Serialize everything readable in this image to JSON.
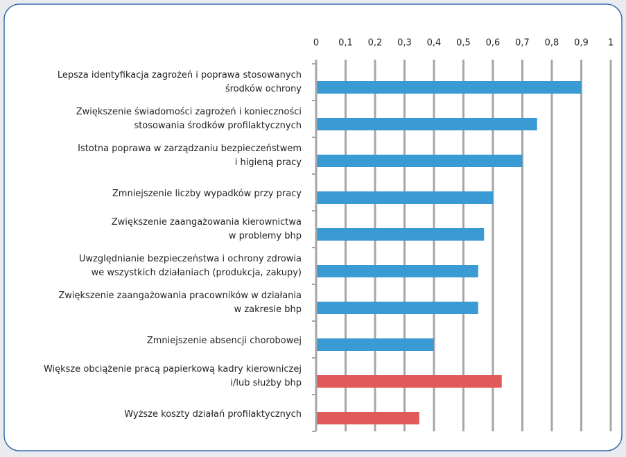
{
  "chart_data": {
    "type": "hbar",
    "categories": [
      [
        "Lepsza identyfikacja zagrożeń i poprawa stosowanych",
        "środków ochrony"
      ],
      [
        "Zwiększenie świadomości zagrożeń i konieczności",
        "stosowania środków profilaktycznych"
      ],
      [
        "Istotna poprawa w zarządzaniu bezpieczeństwem",
        "i higieną pracy"
      ],
      [
        "Zmniejszenie liczby wypadków przy pracy"
      ],
      [
        "Zwiększenie zaangażowania kierownictwa",
        "w problemy bhp"
      ],
      [
        "Uwzględnianie bezpieczeństwa i ochrony zdrowia",
        "we wszystkich działaniach (produkcja, zakupy)"
      ],
      [
        "Zwiększenie zaangażowania pracowników w działania",
        "w zakresie bhp"
      ],
      [
        "Zmniejszenie absencji chorobowej"
      ],
      [
        "Większe obciążenie pracą papierkową kadry kierowniczej",
        "i/lub służby bhp"
      ],
      [
        "Wyższe koszty działań profilaktycznych"
      ]
    ],
    "values": [
      0.9,
      0.75,
      0.7,
      0.6,
      0.57,
      0.55,
      0.55,
      0.4,
      0.63,
      0.35
    ],
    "colors": [
      "#3a9ad4",
      "#3a9ad4",
      "#3a9ad4",
      "#3a9ad4",
      "#3a9ad4",
      "#3a9ad4",
      "#3a9ad4",
      "#3a9ad4",
      "#e05a5a",
      "#e05a5a"
    ],
    "xlim": [
      0,
      1
    ],
    "xticks": [
      0,
      {
        "value": 0.1,
        "label": "0,1"
      },
      {
        "value": 0.2,
        "label": "0,2"
      },
      {
        "value": 0.3,
        "label": "0,3"
      },
      {
        "value": 0.4,
        "label": "0,4"
      },
      {
        "value": 0.5,
        "label": "0,5"
      },
      {
        "value": 0.6,
        "label": "0,6"
      },
      {
        "value": 0.7,
        "label": "0,7"
      },
      {
        "value": 0.8,
        "label": "0,8"
      },
      {
        "value": 0.9,
        "label": "0,9"
      },
      1
    ],
    "grid": true
  }
}
